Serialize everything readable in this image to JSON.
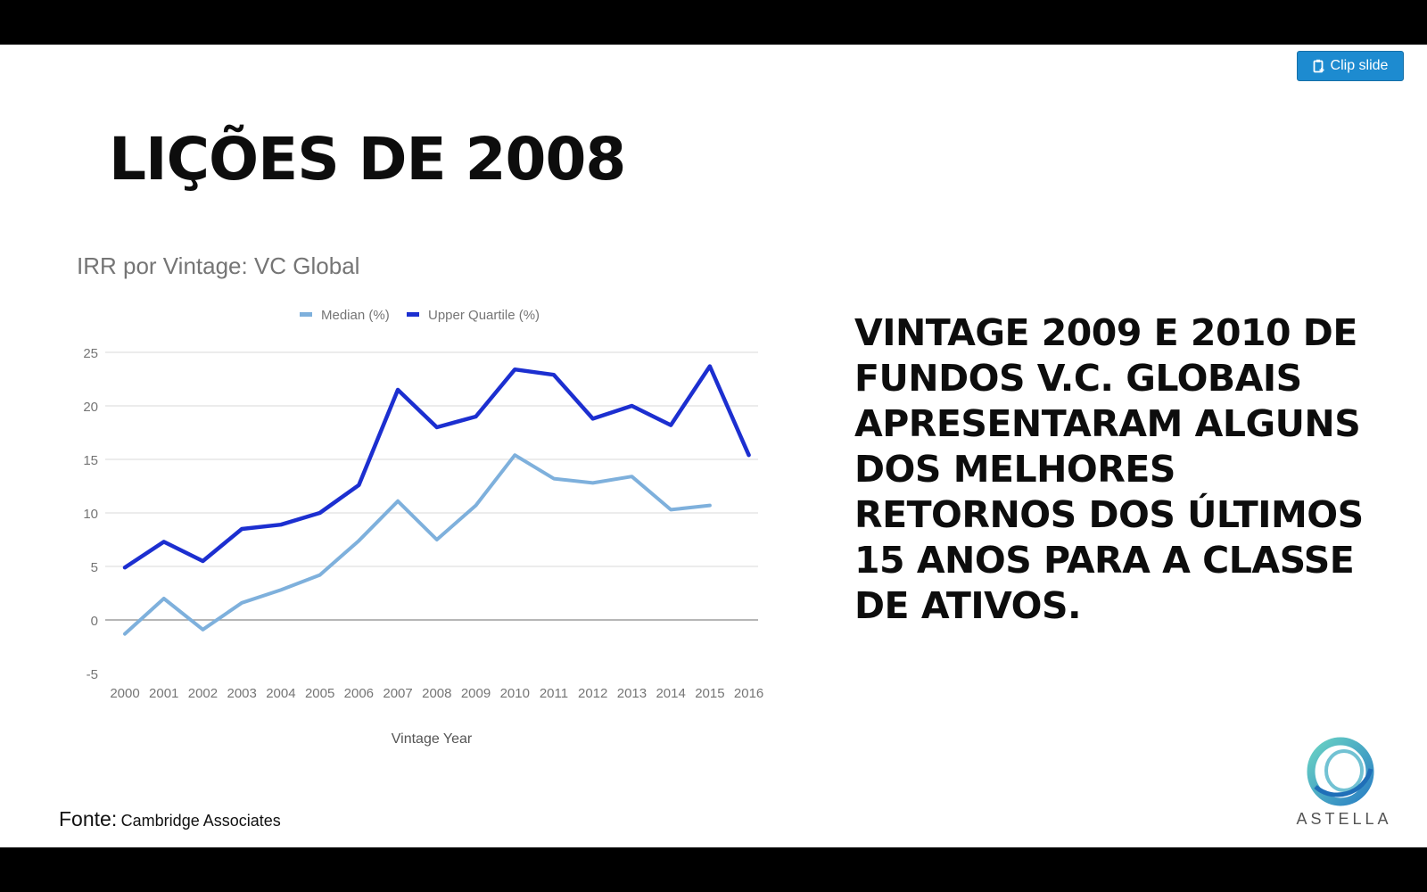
{
  "toolbar": {
    "clip_label": "Clip slide",
    "clip_icon": "clipboard-icon"
  },
  "slide": {
    "title": "LIÇÕES DE 2008",
    "body_text": "VINTAGE 2009 E 2010 DE FUNDOS V.C. GLOBAIS APRESENTARAM ALGUNS DOS MELHORES RETORNOS DOS ÚLTIMOS 15 ANOS PARA A CLASSE DE ATIVOS.",
    "source_label": "Fonte:",
    "source_name": "Cambridge Associates",
    "logo_text": "ASTELLA"
  },
  "colors": {
    "median": "#7eb0dc",
    "upper_quartile": "#1c2fd0",
    "gridline": "#e0e0e0",
    "zero_line": "#9e9e9e",
    "axis_text": "#757575",
    "clip_button": "#1d8bd0"
  },
  "chart_data": {
    "type": "line",
    "title": "IRR por Vintage: VC Global",
    "xlabel": "Vintage Year",
    "ylabel": "",
    "categories": [
      "2000",
      "2001",
      "2002",
      "2003",
      "2004",
      "2005",
      "2006",
      "2007",
      "2008",
      "2009",
      "2010",
      "2011",
      "2012",
      "2013",
      "2014",
      "2015",
      "2016"
    ],
    "yticks": [
      -5,
      0,
      5,
      10,
      15,
      20,
      25
    ],
    "ylim": [
      -5,
      25
    ],
    "grid": true,
    "legend": "top",
    "series": [
      {
        "name": "Median (%)",
        "values": [
          -1.3,
          2.0,
          -0.9,
          1.6,
          2.8,
          4.2,
          7.4,
          11.1,
          7.5,
          10.7,
          15.4,
          13.2,
          12.8,
          13.4,
          10.3,
          10.7,
          null
        ]
      },
      {
        "name": "Upper Quartile (%)",
        "values": [
          4.9,
          7.3,
          5.5,
          8.5,
          8.9,
          10.0,
          12.6,
          21.5,
          18.0,
          19.0,
          23.4,
          22.9,
          18.8,
          20.0,
          18.2,
          23.7,
          15.4
        ]
      }
    ]
  }
}
